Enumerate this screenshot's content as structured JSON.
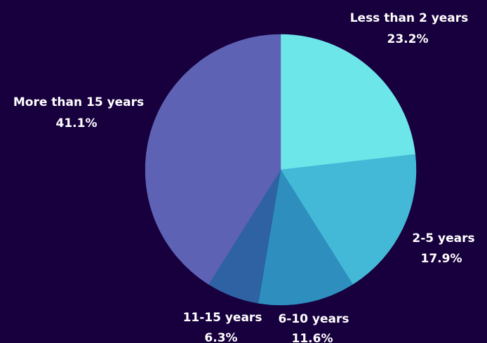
{
  "background_color": "#17003d",
  "chart_data": {
    "type": "pie",
    "title": "",
    "slices": [
      {
        "label": "Less than 2 years",
        "value": 23.2,
        "value_label": "23.2%",
        "color": "#6de6ea"
      },
      {
        "label": "2-5 years",
        "value": 17.9,
        "value_label": "17.9%",
        "color": "#44b9d7"
      },
      {
        "label": "6-10 years",
        "value": 11.6,
        "value_label": "11.6%",
        "color": "#2e8fbe"
      },
      {
        "label": "11-15 years",
        "value": 6.3,
        "value_label": "6.3%",
        "color": "#2e62a3"
      },
      {
        "label": "More than 15 years",
        "value": 41.1,
        "value_label": "41.1%",
        "color": "#5e62b4"
      }
    ],
    "start_angle_deg": 0,
    "direction": "clockwise",
    "legend": "none",
    "labels_position": "outside"
  }
}
